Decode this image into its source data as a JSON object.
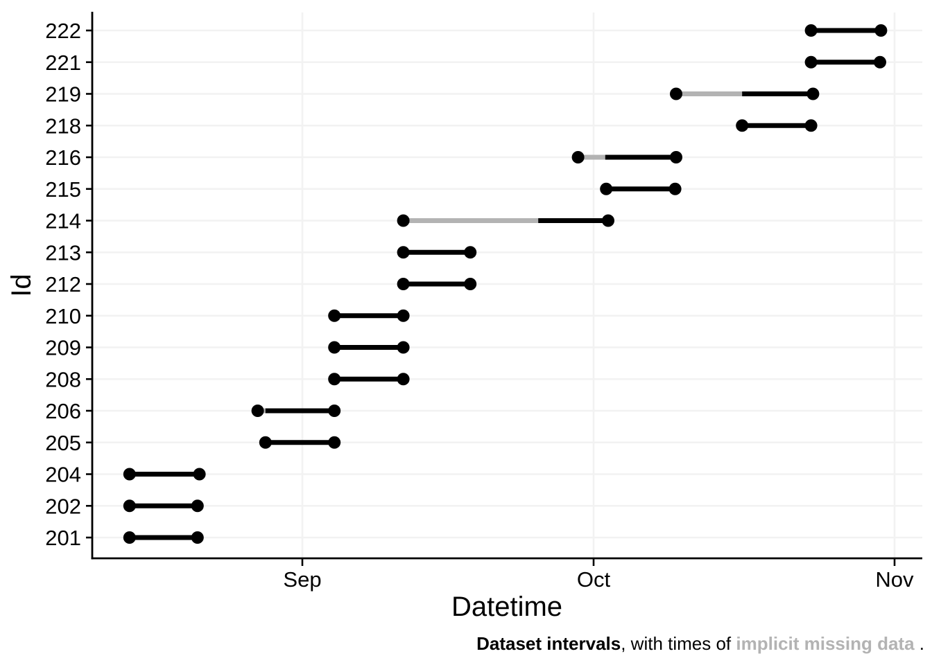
{
  "caption": {
    "bold": "Dataset intervals",
    "normal": ", with times of ",
    "gray": "implicit missing data",
    "tail": " ."
  },
  "colors": {
    "interval": "#000000",
    "missing": "#b3b3b3",
    "gridline": "#f2f2f2",
    "axis": "#000000",
    "caption_gray": "#b3b3b3",
    "background": "#ffffff"
  },
  "chart_data": {
    "type": "interval_timeline",
    "title": "",
    "xlabel": "Datetime",
    "ylabel": "Id",
    "grid": "major only, light gray; left and bottom black axis lines",
    "legend": "none",
    "x_axis": {
      "unit": "days since Sep 1",
      "range_days": [
        -21.6,
        63.9
      ],
      "ticks": [
        {
          "label": "Sep",
          "day": 0
        },
        {
          "label": "Oct",
          "day": 30
        },
        {
          "label": "Nov",
          "day": 61
        }
      ]
    },
    "ids": [
      "222",
      "221",
      "219",
      "218",
      "216",
      "215",
      "214",
      "213",
      "212",
      "210",
      "209",
      "208",
      "206",
      "205",
      "204",
      "202",
      "201"
    ],
    "intervals": [
      {
        "id": "222",
        "start_day": 52.4,
        "end_day": 59.6,
        "start_date": "Oct 23",
        "end_date": "Oct 30",
        "missing": []
      },
      {
        "id": "221",
        "start_day": 52.4,
        "end_day": 59.5,
        "start_date": "Oct 23",
        "end_date": "Oct 30",
        "missing": []
      },
      {
        "id": "219",
        "start_day": 38.5,
        "end_day": 52.6,
        "start_date": "Oct 9",
        "end_date": "Oct 23",
        "missing": [
          {
            "from_day": 38.5,
            "to_day": 45.3,
            "from_date": "Oct 9",
            "to_date": "Oct 16"
          }
        ]
      },
      {
        "id": "218",
        "start_day": 45.3,
        "end_day": 52.4,
        "start_date": "Oct 16",
        "end_date": "Oct 23",
        "missing": []
      },
      {
        "id": "216",
        "start_day": 28.4,
        "end_day": 38.5,
        "start_date": "Sep 29",
        "end_date": "Oct 9",
        "missing": [
          {
            "from_day": 28.4,
            "to_day": 31.2,
            "from_date": "Sep 29",
            "to_date": "Oct 2"
          }
        ]
      },
      {
        "id": "215",
        "start_day": 31.3,
        "end_day": 38.4,
        "start_date": "Oct 2",
        "end_date": "Oct 9",
        "missing": []
      },
      {
        "id": "214",
        "start_day": 10.4,
        "end_day": 31.5,
        "start_date": "Sep 11",
        "end_date": "Oct 2",
        "missing": [
          {
            "from_day": 10.4,
            "to_day": 24.3,
            "from_date": "Sep 11",
            "to_date": "Sep 25"
          }
        ]
      },
      {
        "id": "213",
        "start_day": 10.4,
        "end_day": 17.3,
        "start_date": "Sep 11",
        "end_date": "Sep 18",
        "missing": []
      },
      {
        "id": "212",
        "start_day": 10.4,
        "end_day": 17.3,
        "start_date": "Sep 11",
        "end_date": "Sep 18",
        "missing": []
      },
      {
        "id": "210",
        "start_day": 3.3,
        "end_day": 10.4,
        "start_date": "Sep 4",
        "end_date": "Sep 11",
        "missing": []
      },
      {
        "id": "209",
        "start_day": 3.3,
        "end_day": 10.4,
        "start_date": "Sep 4",
        "end_date": "Sep 11",
        "missing": []
      },
      {
        "id": "208",
        "start_day": 3.3,
        "end_day": 10.4,
        "start_date": "Sep 4",
        "end_date": "Sep 11",
        "missing": []
      },
      {
        "id": "206",
        "start_day": -4.6,
        "end_day": 3.3,
        "start_date": "Aug 27",
        "end_date": "Sep 4",
        "missing": [
          {
            "from_day": -4.6,
            "to_day": -3.8,
            "from_date": "Aug 27",
            "to_date": "Aug 28"
          }
        ]
      },
      {
        "id": "205",
        "start_day": -3.8,
        "end_day": 3.3,
        "start_date": "Aug 28",
        "end_date": "Sep 4",
        "missing": []
      },
      {
        "id": "204",
        "start_day": -17.8,
        "end_day": -10.6,
        "start_date": "Aug 14",
        "end_date": "Aug 21",
        "missing": []
      },
      {
        "id": "202",
        "start_day": -17.8,
        "end_day": -10.8,
        "start_date": "Aug 14",
        "end_date": "Aug 21",
        "missing": []
      },
      {
        "id": "201",
        "start_day": -17.8,
        "end_day": -10.8,
        "start_date": "Aug 14",
        "end_date": "Aug 21",
        "missing": []
      }
    ]
  }
}
